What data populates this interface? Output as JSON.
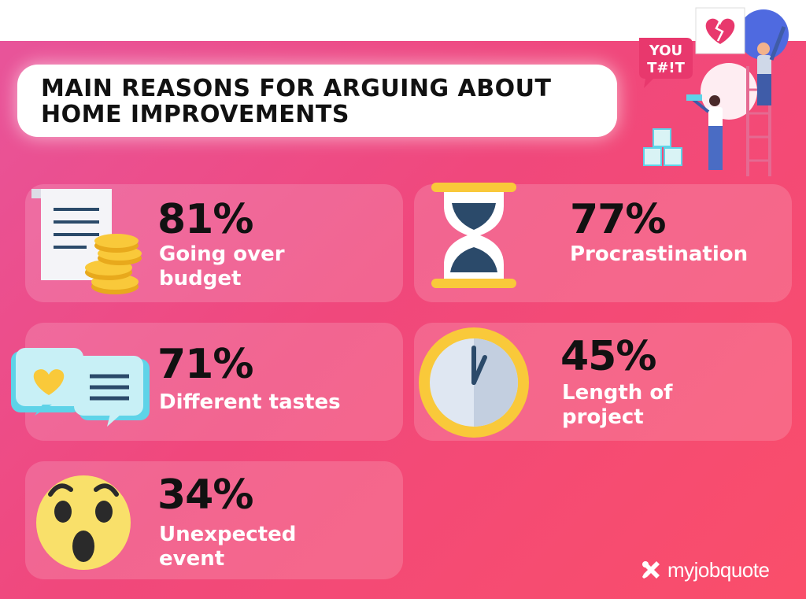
{
  "title_line1": "MAIN REASONS FOR ARGUING ABOUT",
  "title_line2": "HOME IMPROVEMENTS",
  "speech_bubble": "YOU\nT#!T",
  "brand": "myjobquote",
  "colors": {
    "background_start": "#e8549a",
    "background_end": "#fa4e6a",
    "percent_text": "#111111",
    "label_text": "#ffffff"
  },
  "icons": [
    "budget-document-coins-icon",
    "hourglass-icon",
    "chat-bubbles-icon",
    "clock-icon",
    "shocked-face-icon",
    "renovation-couple-illustration"
  ],
  "chart_data": {
    "type": "table",
    "title": "MAIN REASONS FOR ARGUING ABOUT HOME IMPROVEMENTS",
    "unit": "%",
    "items": [
      {
        "percent_label": "81%",
        "value": 81,
        "label": "Going over\nbudget"
      },
      {
        "percent_label": "77%",
        "value": 77,
        "label": "Procrastination"
      },
      {
        "percent_label": "71%",
        "value": 71,
        "label": "Different tastes"
      },
      {
        "percent_label": "45%",
        "value": 45,
        "label": "Length of\nproject"
      },
      {
        "percent_label": "34%",
        "value": 34,
        "label": "Unexpected\nevent"
      }
    ]
  }
}
